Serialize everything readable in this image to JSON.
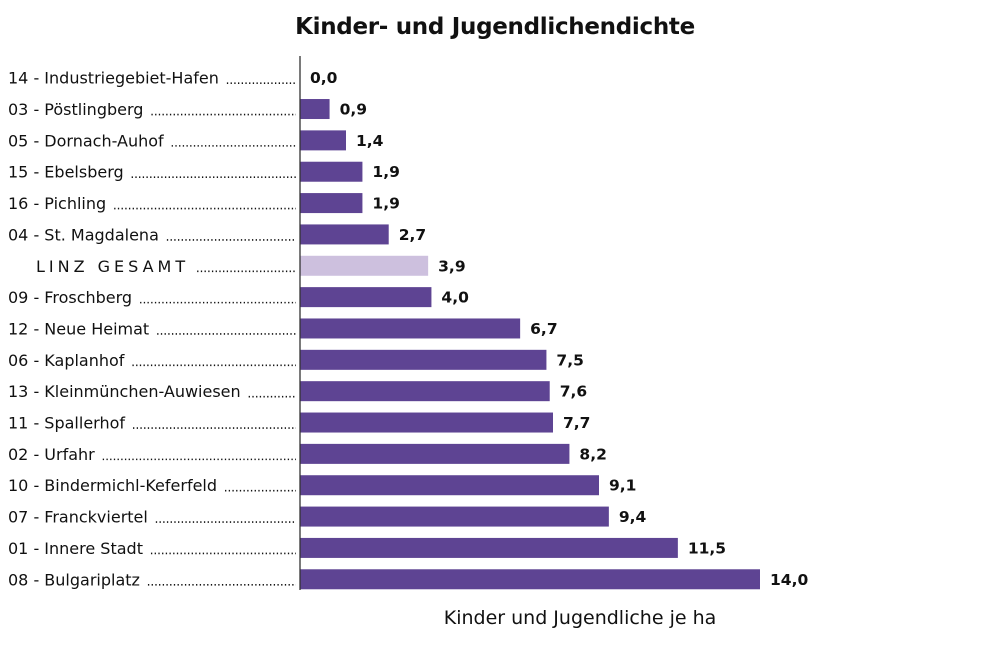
{
  "chart_data": {
    "type": "bar",
    "orientation": "horizontal",
    "title": "Kinder- und Jugendlichendichte",
    "xlabel": "Kinder und Jugendliche je ha",
    "ylabel": "",
    "xlim": [
      0,
      14.0
    ],
    "grid": false,
    "categories": [
      "14 - Industriegebiet-Hafen",
      "03 - Pöstlingberg",
      "05 - Dornach-Auhof",
      "15 - Ebelsberg",
      "16 - Pichling",
      "04 - St. Magdalena",
      "LINZ GESAMT",
      "09 - Froschberg",
      "12 - Neue Heimat",
      "06 - Kaplanhof",
      "13 - Kleinmünchen-Auwiesen",
      "11 - Spallerhof",
      "02 - Urfahr",
      "10 - Bindermichl-Keferfeld",
      "07 - Franckviertel",
      "01 - Innere Stadt",
      "08 - Bulgariplatz"
    ],
    "values": [
      0.0,
      0.9,
      1.4,
      1.9,
      1.9,
      2.7,
      3.9,
      4.0,
      6.7,
      7.5,
      7.6,
      7.7,
      8.2,
      9.1,
      9.4,
      11.5,
      14.0
    ],
    "value_labels": [
      "0,0",
      "0,9",
      "1,4",
      "1,9",
      "1,9",
      "2,7",
      "3,9",
      "4,0",
      "6,7",
      "7,5",
      "7,6",
      "7,7",
      "8,2",
      "9,1",
      "9,4",
      "11,5",
      "14,0"
    ],
    "highlight_category": "LINZ GESAMT",
    "colors": {
      "bar": "#5e4493",
      "highlight": "#cdc0de",
      "axis": "#333333"
    }
  }
}
